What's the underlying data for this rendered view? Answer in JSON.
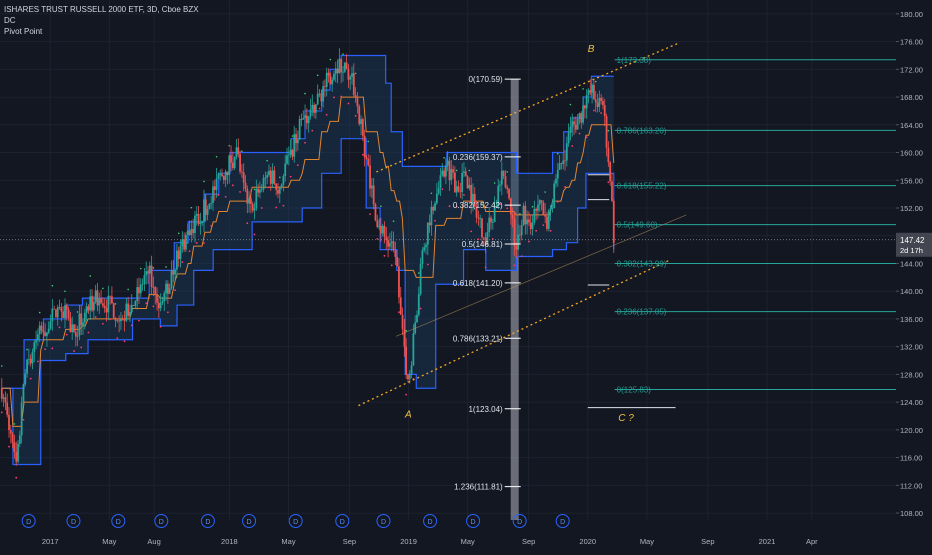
{
  "header": {
    "symbol_line": "ISHARES TRUST RUSSELL 2000 ETF, 3D, Cboe BZX",
    "indicators": [
      "DC",
      "Pivot Point"
    ]
  },
  "colors": {
    "background": "#131722",
    "grid": "#1e2230",
    "up": "#26a69a",
    "down": "#ef5350",
    "channel_line": "#2962ff",
    "channel_fill": "#1b3a5c",
    "basis": "#e3852f",
    "trendline": "#f5a623",
    "fib_left": "#ffffff",
    "fib_right": "#26a69a",
    "price_badge": "#434651",
    "text": "#b2b5be"
  },
  "chart_data": {
    "type": "candlestick",
    "title": "ISHARES TRUST RUSSELL 2000 ETF, 3D, Cboe BZX",
    "ylim": [
      107,
      182
    ],
    "y_ticks": [
      108,
      112,
      116,
      120,
      124,
      128,
      132,
      136,
      140,
      144,
      148,
      152,
      156,
      160,
      164,
      168,
      172,
      176,
      180
    ],
    "y_tick_labels": [
      "108.00",
      "112.00",
      "116.00",
      "120.00",
      "124.00",
      "128.00",
      "132.00",
      "136.00",
      "140.00",
      "144.00",
      "148.00",
      "152.00",
      "156.00",
      "160.00",
      "164.00",
      "168.00",
      "172.00",
      "176.00",
      "180.00"
    ],
    "x_ticks": [
      {
        "label": "2017",
        "x": 2017.0
      },
      {
        "label": "May",
        "x": 2017.33
      },
      {
        "label": "Aug",
        "x": 2017.58
      },
      {
        "label": "2018",
        "x": 2018.0
      },
      {
        "label": "May",
        "x": 2018.33
      },
      {
        "label": "Sep",
        "x": 2018.67
      },
      {
        "label": "2019",
        "x": 2019.0
      },
      {
        "label": "May",
        "x": 2019.33
      },
      {
        "label": "Sep",
        "x": 2019.67
      },
      {
        "label": "2020",
        "x": 2020.0
      },
      {
        "label": "May",
        "x": 2020.33
      },
      {
        "label": "Sep",
        "x": 2020.67
      },
      {
        "label": "2021",
        "x": 2021.0
      },
      {
        "label": "Apr",
        "x": 2021.25
      }
    ],
    "xlim": [
      2016.72,
      2021.72
    ],
    "price_path": [
      [
        2016.73,
        126
      ],
      [
        2016.78,
        119
      ],
      [
        2016.81,
        114
      ],
      [
        2016.86,
        128
      ],
      [
        2016.92,
        133
      ],
      [
        2016.98,
        135
      ],
      [
        2017.06,
        138
      ],
      [
        2017.13,
        134
      ],
      [
        2017.2,
        137
      ],
      [
        2017.26,
        139
      ],
      [
        2017.33,
        138
      ],
      [
        2017.4,
        136
      ],
      [
        2017.48,
        139
      ],
      [
        2017.55,
        143
      ],
      [
        2017.6,
        137
      ],
      [
        2017.66,
        141
      ],
      [
        2017.72,
        146
      ],
      [
        2017.78,
        149
      ],
      [
        2017.84,
        151
      ],
      [
        2017.9,
        154
      ],
      [
        2017.96,
        157
      ],
      [
        2018.04,
        160
      ],
      [
        2018.1,
        152
      ],
      [
        2018.16,
        154
      ],
      [
        2018.22,
        157
      ],
      [
        2018.28,
        155
      ],
      [
        2018.34,
        160
      ],
      [
        2018.4,
        164
      ],
      [
        2018.46,
        166
      ],
      [
        2018.52,
        169
      ],
      [
        2018.56,
        171
      ],
      [
        2018.6,
        173
      ],
      [
        2018.65,
        172
      ],
      [
        2018.7,
        169
      ],
      [
        2018.74,
        163
      ],
      [
        2018.78,
        157
      ],
      [
        2018.82,
        151
      ],
      [
        2018.86,
        148
      ],
      [
        2018.9,
        146
      ],
      [
        2018.93,
        145
      ],
      [
        2018.97,
        132
      ],
      [
        2019.0,
        127
      ],
      [
        2019.04,
        136
      ],
      [
        2019.08,
        146
      ],
      [
        2019.12,
        151
      ],
      [
        2019.17,
        155
      ],
      [
        2019.22,
        158
      ],
      [
        2019.27,
        155
      ],
      [
        2019.32,
        157
      ],
      [
        2019.38,
        151
      ],
      [
        2019.43,
        148
      ],
      [
        2019.48,
        152
      ],
      [
        2019.52,
        156
      ],
      [
        2019.56,
        154
      ],
      [
        2019.6,
        146
      ],
      [
        2019.64,
        152
      ],
      [
        2019.68,
        148
      ],
      [
        2019.72,
        153
      ],
      [
        2019.78,
        150
      ],
      [
        2019.82,
        155
      ],
      [
        2019.86,
        159
      ],
      [
        2019.9,
        163
      ],
      [
        2019.95,
        165
      ],
      [
        2019.99,
        167
      ],
      [
        2020.02,
        169
      ],
      [
        2020.06,
        166
      ],
      [
        2020.08,
        168
      ],
      [
        2020.1,
        163
      ],
      [
        2020.12,
        158
      ],
      [
        2020.135,
        153
      ],
      [
        2020.145,
        146
      ]
    ],
    "donchian": {
      "upper": [
        [
          2016.73,
          126
        ],
        [
          2016.8,
          126
        ],
        [
          2016.85,
          133
        ],
        [
          2016.95,
          136
        ],
        [
          2017.08,
          138
        ],
        [
          2017.18,
          139
        ],
        [
          2017.45,
          139
        ],
        [
          2017.55,
          143
        ],
        [
          2017.68,
          147
        ],
        [
          2017.76,
          150
        ],
        [
          2017.86,
          154
        ],
        [
          2017.94,
          157
        ],
        [
          2018.0,
          160
        ],
        [
          2018.24,
          160
        ],
        [
          2018.34,
          162
        ],
        [
          2018.42,
          166
        ],
        [
          2018.5,
          169
        ],
        [
          2018.56,
          172
        ],
        [
          2018.62,
          174
        ],
        [
          2018.82,
          174
        ],
        [
          2018.86,
          170
        ],
        [
          2018.9,
          163
        ],
        [
          2018.95,
          158
        ],
        [
          2019.02,
          158
        ],
        [
          2019.12,
          158
        ],
        [
          2019.2,
          160
        ],
        [
          2019.55,
          160
        ],
        [
          2019.6,
          157
        ],
        [
          2019.72,
          157
        ],
        [
          2019.8,
          160
        ],
        [
          2019.86,
          163
        ],
        [
          2019.9,
          165
        ],
        [
          2019.96,
          168
        ],
        [
          2020.02,
          171
        ],
        [
          2020.14,
          171
        ]
      ],
      "lower": [
        [
          2016.73,
          126
        ],
        [
          2016.78,
          115
        ],
        [
          2016.92,
          115
        ],
        [
          2016.94,
          130
        ],
        [
          2017.08,
          131
        ],
        [
          2017.2,
          133
        ],
        [
          2017.35,
          133
        ],
        [
          2017.45,
          136
        ],
        [
          2017.6,
          135
        ],
        [
          2017.7,
          138
        ],
        [
          2017.8,
          143
        ],
        [
          2017.9,
          146
        ],
        [
          2018.05,
          146
        ],
        [
          2018.12,
          150
        ],
        [
          2018.3,
          150
        ],
        [
          2018.4,
          152
        ],
        [
          2018.5,
          157
        ],
        [
          2018.62,
          162
        ],
        [
          2018.68,
          162
        ],
        [
          2018.76,
          152
        ],
        [
          2018.84,
          146
        ],
        [
          2018.92,
          143
        ],
        [
          2018.97,
          128
        ],
        [
          2019.03,
          126
        ],
        [
          2019.13,
          126
        ],
        [
          2019.14,
          141
        ],
        [
          2019.22,
          141
        ],
        [
          2019.3,
          146
        ],
        [
          2019.38,
          146
        ],
        [
          2019.42,
          143
        ],
        [
          2019.52,
          143
        ],
        [
          2019.6,
          145
        ],
        [
          2019.72,
          145
        ],
        [
          2019.8,
          146
        ],
        [
          2019.88,
          147
        ],
        [
          2019.94,
          152
        ],
        [
          2019.98,
          157
        ],
        [
          2020.1,
          157
        ],
        [
          2020.14,
          146
        ]
      ]
    },
    "fib_left": {
      "levels": [
        {
          "label": "0(170.59)",
          "value": 170.59
        },
        {
          "label": "0.236(159.37)",
          "value": 159.37
        },
        {
          "label": "0.382(152.42)",
          "value": 152.42
        },
        {
          "label": "0.5(146.81)",
          "value": 146.81
        },
        {
          "label": "0.618(141.20)",
          "value": 141.2
        },
        {
          "label": "0.786(133.21)",
          "value": 133.21
        },
        {
          "label": "1(123.04)",
          "value": 123.04
        },
        {
          "label": "1.236(111.81)",
          "value": 111.81
        }
      ],
      "x_start": 2019.57,
      "x_end": 2019.92
    },
    "fib_right": {
      "levels": [
        {
          "label": "1(173.38)",
          "value": 173.38
        },
        {
          "label": "0.786(163.20)",
          "value": 163.2
        },
        {
          "label": "0.618(155.22)",
          "value": 155.22
        },
        {
          "label": "0.5(149.60)",
          "value": 149.6
        },
        {
          "label": "0.382(143.99)",
          "value": 143.99
        },
        {
          "label": "0.236(137.05)",
          "value": 137.05
        },
        {
          "label": "0(125.83)",
          "value": 125.83
        }
      ],
      "x_start": 2020.15
    },
    "white_lines": [
      {
        "x1": 2020.0,
        "x2": 2020.12,
        "y": 156.8
      },
      {
        "x1": 2020.0,
        "x2": 2020.12,
        "y": 153.2
      },
      {
        "x1": 2020.0,
        "x2": 2020.12,
        "y": 140.9
      },
      {
        "x1": 2020.0,
        "x2": 2020.49,
        "y": 123.2
      }
    ],
    "channel_upper": [
      [
        2018.82,
        157.2
      ],
      [
        2020.5,
        175.7
      ]
    ],
    "channel_lower": [
      [
        2018.72,
        123.5
      ],
      [
        2020.45,
        144.4
      ]
    ],
    "highlight_band": {
      "x1": 2019.57,
      "x2": 2019.595
    },
    "points": [
      {
        "label": "A",
        "x": 2018.98,
        "y": 121.8
      },
      {
        "label": "B",
        "x": 2020.0,
        "y": 174.5
      },
      {
        "label": "C ?",
        "x": 2020.17,
        "y": 121.3
      }
    ],
    "current_price": {
      "value": 147.42,
      "label": "147.42",
      "countdown": "2d 17h"
    },
    "dividend_markers": {
      "label": "D",
      "x": [
        2016.88,
        2017.13,
        2017.38,
        2017.62,
        2017.88,
        2018.11,
        2018.37,
        2018.63,
        2018.86,
        2019.12,
        2019.36,
        2019.62,
        2019.86
      ]
    }
  }
}
